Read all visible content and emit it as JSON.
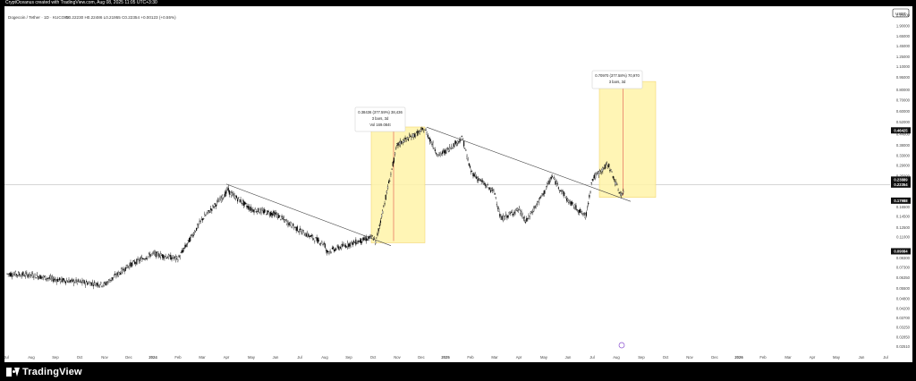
{
  "watermark": "CryptOceanus created with TradingView.com, Aug 08, 2025 11:05 UTC+3:30",
  "header": {
    "symbol": "Dogecoin / Tether · 1D · KUCOIN",
    "ohlc": "O0.22230  H0.22486  L0.21955  C0.22354  +0.00123 (+0.55%)"
  },
  "footer": {
    "brand": "TradingView"
  },
  "top_right_badge": "USDT",
  "colors": {
    "background": "#ffffff",
    "candles": "#000000",
    "trendline": "#444444",
    "box_fill": "#fff3a8",
    "box_border": "#f0d060",
    "arrow": "#e0524a",
    "label_badge": "#111111"
  },
  "chart_data": {
    "type": "candlestick",
    "series_desc": "DOGE/USDT daily, log scale",
    "y_scale": "log",
    "ylim": [
      0.0235,
      2.25
    ],
    "x_ticks": [
      "Jul",
      "Aug",
      "Sep",
      "Oct",
      "Nov",
      "Dec",
      "2024",
      "Feb",
      "Mar",
      "Apr",
      "May",
      "Jun",
      "Jul",
      "Aug",
      "Sep",
      "Oct",
      "Nov",
      "Dec",
      "2025",
      "Feb",
      "Mar",
      "Apr",
      "May",
      "Jun",
      "Jul",
      "Aug",
      "Sep",
      "Oct",
      "Nov",
      "Dec",
      "2026",
      "Feb",
      "Mar",
      "Apr",
      "May",
      "Jun",
      "Jul"
    ],
    "y_ticks": [
      2.2,
      1.9,
      1.65,
      1.45,
      1.25,
      1.1,
      0.95,
      0.8,
      0.7,
      0.6,
      0.52,
      0.44,
      0.38,
      0.33,
      0.29,
      0.25,
      0.165,
      0.145,
      0.125,
      0.11,
      0.083,
      0.073,
      0.0635,
      0.055,
      0.048,
      0.042,
      0.037,
      0.0325,
      0.0285,
      0.0251
    ],
    "y_tick_labels": [
      "2.20000",
      "1.90000",
      "1.65000",
      "1.45000",
      "1.25000",
      "1.10000",
      "0.95000",
      "0.80000",
      "0.70000",
      "0.60000",
      "0.52000",
      "0.44000",
      "0.38000",
      "0.33000",
      "0.29000",
      "0.25000",
      "0.16500",
      "0.14500",
      "0.12500",
      "0.11000",
      "0.08300",
      "0.07300",
      "0.06350",
      "0.05500",
      "0.04800",
      "0.04200",
      "0.03700",
      "0.03250",
      "0.02850",
      "0.02510"
    ],
    "price_path_monthly": [
      [
        "Jul",
        0.067
      ],
      [
        "Aug",
        0.066
      ],
      [
        "Sep",
        0.062
      ],
      [
        "Oct",
        0.06
      ],
      [
        "Nov",
        0.058
      ],
      [
        "Dec",
        0.075
      ],
      [
        "2024",
        0.088
      ],
      [
        "Feb",
        0.082
      ],
      [
        "Mar",
        0.14
      ],
      [
        "Apr",
        0.2
      ],
      [
        "May",
        0.16
      ],
      [
        "Jun",
        0.15
      ],
      [
        "Jul",
        0.12
      ],
      [
        "Aug",
        0.1
      ],
      [
        "Sep",
        0.1
      ],
      [
        "Oct",
        0.11
      ],
      [
        "Nov",
        0.38
      ],
      [
        "Dec",
        0.46
      ],
      [
        "2025",
        0.35
      ],
      [
        "Feb",
        0.27
      ],
      [
        "Mar",
        0.2
      ],
      [
        "Apr",
        0.16
      ],
      [
        "May",
        0.2
      ],
      [
        "Jun",
        0.18
      ],
      [
        "Jul",
        0.24
      ],
      [
        "Aug",
        0.22354
      ]
    ],
    "price_labels": [
      {
        "text": "0.46425",
        "value": 0.46425
      },
      {
        "text": "0.23889",
        "value": 0.23889
      },
      {
        "text": "0.22354",
        "value": 0.22354
      },
      {
        "text": "0.17988",
        "value": 0.17988
      },
      {
        "text": "0.09084",
        "value": 0.09084
      }
    ],
    "current_price": 0.22354,
    "trendlines": [
      {
        "from": [
          "2024-03-28",
          0.225
        ],
        "to": [
          "2024-10-05",
          0.098
        ]
      },
      {
        "from": [
          "2024-12-08",
          0.485
        ],
        "to": [
          "2025-08-05",
          0.178
        ]
      }
    ],
    "measurements": [
      {
        "label_line1": "0.38436 (377.59%) 38,436",
        "label_line2": "3 bars, 3d",
        "label_line3": "Vol 169.084t",
        "from": 0.1018,
        "to": 0.486
      },
      {
        "label_line1": "0.70970 (377.58%) 70,970",
        "label_line2": "3 bars, 3d",
        "label_line3": "",
        "from": 0.188,
        "to": 0.898
      }
    ]
  }
}
